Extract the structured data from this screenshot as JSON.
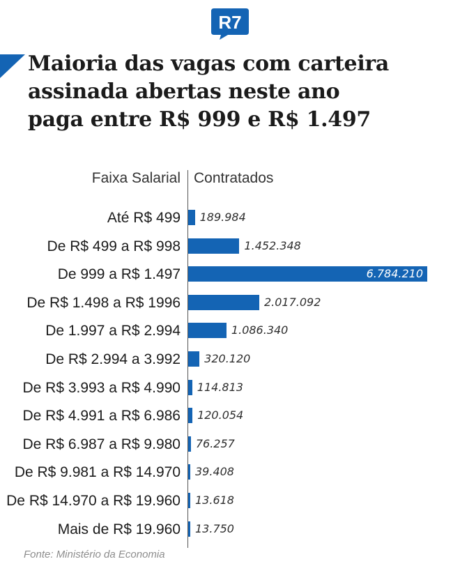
{
  "brand": {
    "logo_text": "R7",
    "logo_color": "#1464b4"
  },
  "headline": {
    "lines": [
      "Maioria das vagas com carteira",
      "assinada abertas neste ano",
      "paga entre R$ 999 e R$ 1.497"
    ]
  },
  "chart_data": {
    "type": "bar",
    "orientation": "horizontal",
    "title": "Maioria das vagas com carteira assinada abertas neste ano paga entre R$ 999 e R$ 1.497",
    "category_header": "Faixa Salarial",
    "value_header": "Contratados",
    "bar_color": "#1464b4",
    "categories": [
      "Até R$ 499",
      "De R$ 499 a R$ 998",
      "De 999 a R$ 1.497",
      "De R$ 1.498 a R$ 1996",
      "De 1.997 a R$ 2.994",
      "De R$ 2.994 a 3.992",
      "De R$ 3.993 a R$ 4.990",
      "De R$ 4.991 a R$ 6.986",
      "De R$ 6.987 a R$ 9.980",
      "De R$ 9.981 a R$ 14.970",
      "De R$ 14.970 a R$ 19.960",
      "Mais de R$ 19.960"
    ],
    "values": [
      189984,
      1452348,
      6784210,
      2017092,
      1086340,
      320120,
      114813,
      120054,
      76257,
      39408,
      13618,
      13750
    ],
    "value_labels": [
      "189.984",
      "1.452.348",
      "6.784.210",
      "2.017.092",
      "1.086.340",
      "320.120",
      "114.813",
      "120.054",
      "76.257",
      "39.408",
      "13.618",
      "13.750"
    ],
    "xlim": [
      0,
      6784210
    ],
    "grid": false,
    "legend": "none"
  },
  "source": "Fonte: Ministério da Economia"
}
